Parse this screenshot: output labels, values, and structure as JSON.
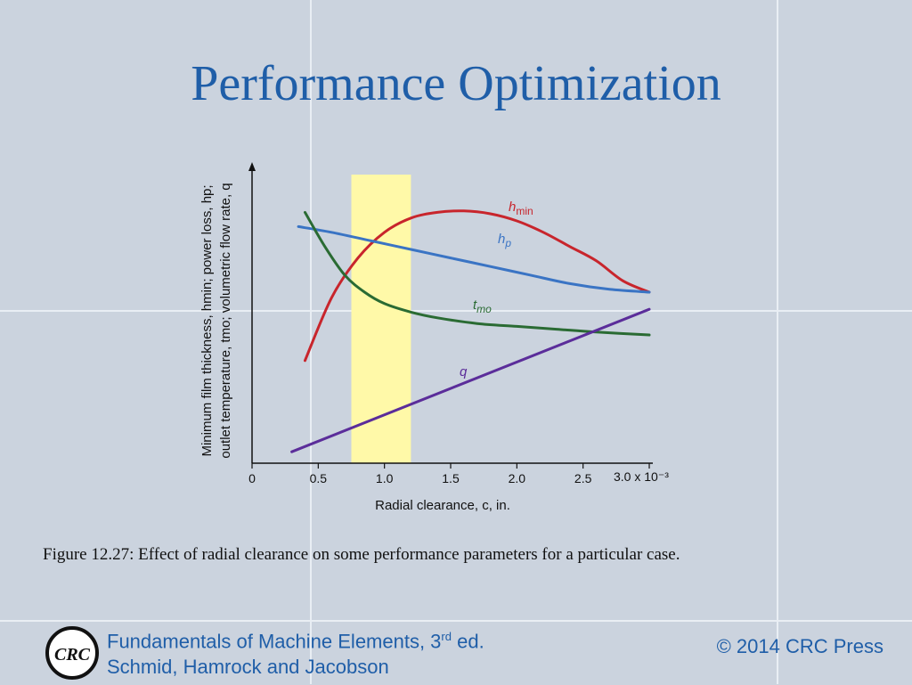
{
  "slide": {
    "title": "Performance Optimization",
    "caption": "Figure 12.27:  Effect of radial clearance on some performance parameters for a particular case."
  },
  "footer": {
    "book_line1_a": "Fundamentals of Machine Elements, 3",
    "book_line1_sup": "rd",
    "book_line1_b": " ed.",
    "book_line2": "Schmid, Hamrock and Jacobson",
    "copyright": "© 2014 CRC Press",
    "logo_text": "CRC"
  },
  "colors": {
    "background": "#cbd3de",
    "title": "#1f5ea8",
    "hmin": "#c8252c",
    "hp": "#3a74c4",
    "tmo": "#2a6b33",
    "q": "#5b2d9a",
    "highlight": "#fff9a8"
  },
  "chart_data": {
    "type": "line",
    "xlabel": "Radial clearance, c, in.",
    "ylabel_line1": "Minimum film thickness, hmin; power loss, hp;",
    "ylabel_line2": "outlet temperature, tmo; volumetric flow rate, q",
    "x_tick_labels": [
      "0",
      "0.5",
      "1.0",
      "1.5",
      "2.0",
      "2.5",
      "3.0 x 10⁻³"
    ],
    "x_ticks": [
      0,
      0.5,
      1.0,
      1.5,
      2.0,
      2.5,
      3.0
    ],
    "xlim": [
      0,
      3.0
    ],
    "ylim": [
      0,
      1
    ],
    "y_ticks_shown": false,
    "grid": false,
    "highlight_band": [
      0.75,
      1.2
    ],
    "series": [
      {
        "name": "hmin",
        "color_key": "hmin",
        "x": [
          0.4,
          0.6,
          0.8,
          1.0,
          1.2,
          1.4,
          1.6,
          1.8,
          2.0,
          2.2,
          2.4,
          2.6,
          2.8,
          3.0
        ],
        "y": [
          0.36,
          0.58,
          0.72,
          0.81,
          0.86,
          0.88,
          0.885,
          0.875,
          0.85,
          0.81,
          0.76,
          0.71,
          0.64,
          0.6
        ]
      },
      {
        "name": "hp",
        "color_key": "hp",
        "x": [
          0.35,
          0.6,
          0.9,
          1.2,
          1.5,
          1.8,
          2.1,
          2.4,
          2.7,
          3.0
        ],
        "y": [
          0.83,
          0.81,
          0.78,
          0.75,
          0.72,
          0.69,
          0.66,
          0.63,
          0.61,
          0.6
        ]
      },
      {
        "name": "tmo",
        "color_key": "tmo",
        "x": [
          0.4,
          0.55,
          0.7,
          0.85,
          1.0,
          1.2,
          1.4,
          1.7,
          2.0,
          2.3,
          2.6,
          3.0
        ],
        "y": [
          0.88,
          0.76,
          0.66,
          0.6,
          0.56,
          0.53,
          0.51,
          0.49,
          0.48,
          0.47,
          0.46,
          0.45
        ]
      },
      {
        "name": "q",
        "color_key": "q",
        "x": [
          0.3,
          3.0
        ],
        "y": [
          0.04,
          0.54
        ]
      }
    ]
  }
}
